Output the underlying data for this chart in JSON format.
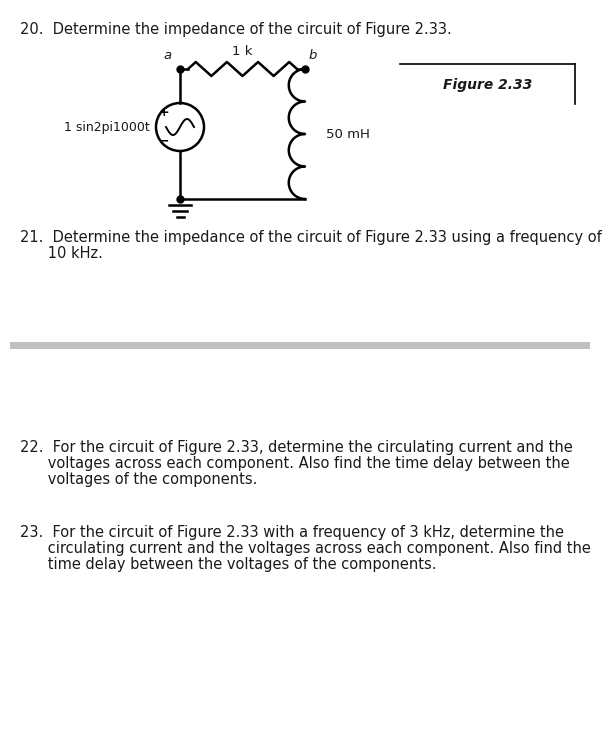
{
  "bg_color": "#ffffff",
  "text_color": "#1a1a1a",
  "q20_text": "20.  Determine the impedance of the circuit of Figure 2.33.",
  "q21_line1": "21.  Determine the impedance of the circuit of Figure 2.33 using a frequency of",
  "q21_line2": "      10 kHz.",
  "q22_line1": "22.  For the circuit of Figure 2.33, determine the circulating current and the",
  "q22_line2": "      voltages across each component. Also find the time delay between the",
  "q22_line3": "      voltages of the components.",
  "q23_line1": "23.  For the circuit of Figure 2.33 with a frequency of 3 kHz, determine the",
  "q23_line2": "      circulating current and the voltages across each component. Also find the",
  "q23_line3": "      time delay between the voltages of the components.",
  "figure_label": "Figure 2.33",
  "resistor_label": "1 k",
  "inductor_label": "50 mH",
  "source_label": "1 sin2pi1000t",
  "node_a": "a",
  "node_b": "b",
  "font_size_body": 10.5,
  "divider_color": "#c0c0c0",
  "divider_lw": 5
}
